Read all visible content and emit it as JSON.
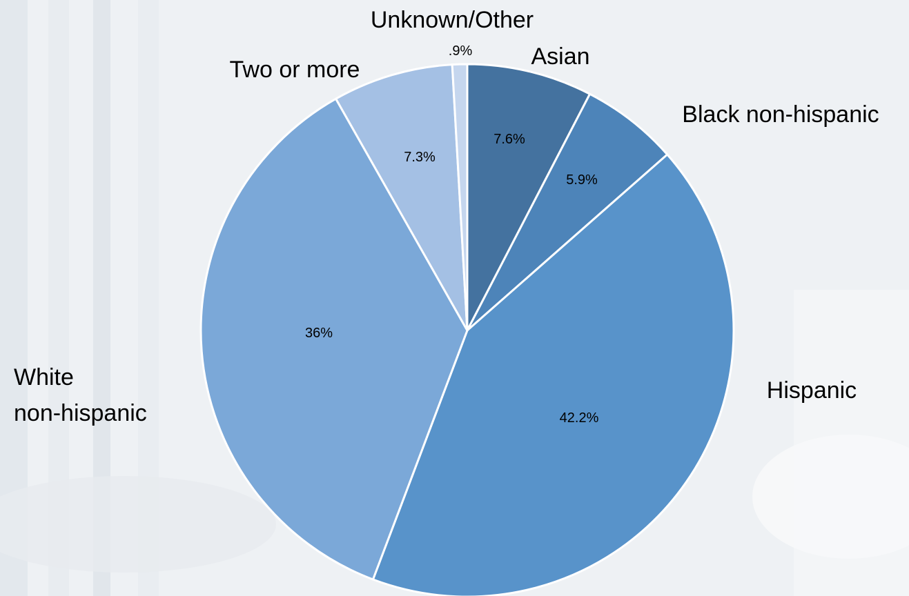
{
  "chart_data": {
    "type": "pie",
    "title": "",
    "start_angle_deg": 0,
    "direction": "clockwise",
    "slices": [
      {
        "key": "asian",
        "label": "Asian",
        "value": 7.6,
        "value_label": "7.6%",
        "color": "#44729f"
      },
      {
        "key": "black",
        "label": "Black non-hispanic",
        "value": 5.9,
        "value_label": "5.9%",
        "color": "#4d84b9"
      },
      {
        "key": "hispanic",
        "label": "Hispanic",
        "value": 42.2,
        "value_label": "42.2%",
        "color": "#5893ca"
      },
      {
        "key": "white",
        "label": "White non-hispanic",
        "label_lines": [
          "White",
          "non-hispanic"
        ],
        "value": 36,
        "value_label": "36%",
        "color": "#7ba8d8"
      },
      {
        "key": "two",
        "label": "Two or more",
        "value": 7.3,
        "value_label": "7.3%",
        "color": "#a4c0e4"
      },
      {
        "key": "unknown",
        "label": "Unknown/Other",
        "value": 0.9,
        "value_label": ".9%",
        "color": "#c5d6ee"
      }
    ],
    "slice_border_color": "#ffffff",
    "legend": "none"
  }
}
